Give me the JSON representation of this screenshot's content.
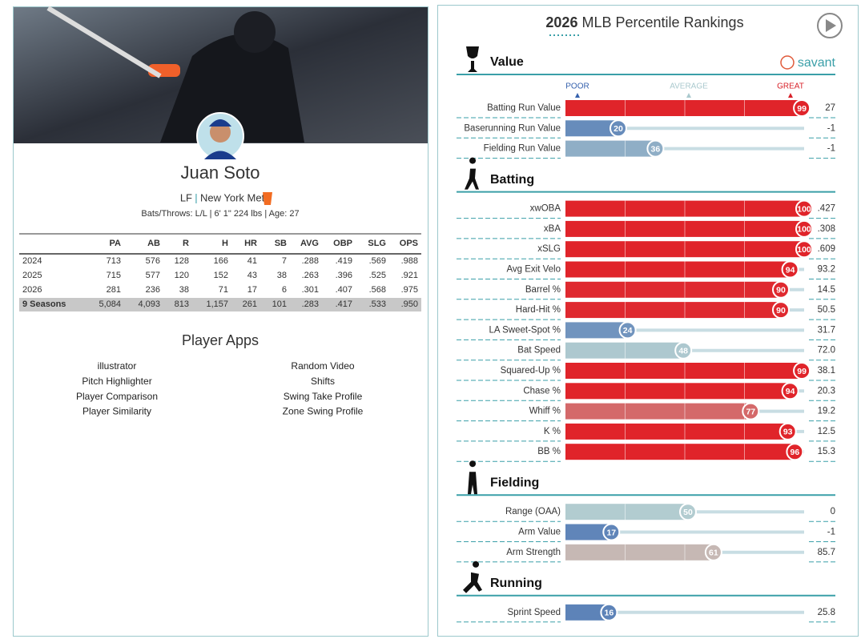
{
  "player": {
    "name": "Juan Soto",
    "position": "LF",
    "team": "New York Mets",
    "bio": "Bats/Throws: L/L | 6' 1\" 224 lbs | Age: 27"
  },
  "stats": {
    "columns": [
      "PA",
      "AB",
      "R",
      "H",
      "HR",
      "SB",
      "AVG",
      "OBP",
      "SLG",
      "OPS"
    ],
    "rows": [
      {
        "season": "2024",
        "values": [
          "713",
          "576",
          "128",
          "166",
          "41",
          "7",
          ".288",
          ".419",
          ".569",
          ".988"
        ]
      },
      {
        "season": "2025",
        "values": [
          "715",
          "577",
          "120",
          "152",
          "43",
          "38",
          ".263",
          ".396",
          ".525",
          ".921"
        ]
      },
      {
        "season": "2026",
        "values": [
          "281",
          "236",
          "38",
          "71",
          "17",
          "6",
          ".301",
          ".407",
          ".568",
          ".975"
        ]
      },
      {
        "season": "9 Seasons",
        "values": [
          "5,084",
          "4,093",
          "813",
          "1,157",
          "261",
          "101",
          ".283",
          ".417",
          ".533",
          ".950"
        ]
      }
    ]
  },
  "apps": {
    "title": "Player Apps",
    "left": [
      "illustrator",
      "Pitch Highlighter",
      "Player Comparison",
      "Player Similarity"
    ],
    "right": [
      "Random Video",
      "Shifts",
      "Swing Take Profile",
      "Zone Swing Profile"
    ]
  },
  "rankings": {
    "year": "2026",
    "title": "MLB Percentile Rankings",
    "brand": "savant",
    "scale": {
      "poor": "POOR",
      "average": "AVERAGE",
      "great": "GREAT"
    },
    "sections": [
      {
        "name": "Value",
        "metrics": [
          {
            "label": "Batting Run Value",
            "percentile": 99,
            "value": "27"
          },
          {
            "label": "Baserunning Run Value",
            "percentile": 20,
            "value": "-1"
          },
          {
            "label": "Fielding Run Value",
            "percentile": 36,
            "value": "-1"
          }
        ]
      },
      {
        "name": "Batting",
        "metrics": [
          {
            "label": "xwOBA",
            "percentile": 100,
            "value": ".427"
          },
          {
            "label": "xBA",
            "percentile": 100,
            "value": ".308"
          },
          {
            "label": "xSLG",
            "percentile": 100,
            "value": ".609"
          },
          {
            "label": "Avg Exit Velo",
            "percentile": 94,
            "value": "93.2"
          },
          {
            "label": "Barrel %",
            "percentile": 90,
            "value": "14.5"
          },
          {
            "label": "Hard-Hit %",
            "percentile": 90,
            "value": "50.5"
          },
          {
            "label": "LA Sweet-Spot %",
            "percentile": 24,
            "value": "31.7"
          },
          {
            "label": "Bat Speed",
            "percentile": 48,
            "value": "72.0"
          },
          {
            "label": "Squared-Up %",
            "percentile": 99,
            "value": "38.1"
          },
          {
            "label": "Chase %",
            "percentile": 94,
            "value": "20.3"
          },
          {
            "label": "Whiff %",
            "percentile": 77,
            "value": "19.2"
          },
          {
            "label": "K %",
            "percentile": 93,
            "value": "12.5"
          },
          {
            "label": "BB %",
            "percentile": 96,
            "value": "15.3"
          }
        ]
      },
      {
        "name": "Fielding",
        "metrics": [
          {
            "label": "Range (OAA)",
            "percentile": 50,
            "value": "0"
          },
          {
            "label": "Arm Value",
            "percentile": 17,
            "value": "-1"
          },
          {
            "label": "Arm Strength",
            "percentile": 61,
            "value": "85.7"
          }
        ]
      },
      {
        "name": "Running",
        "metrics": [
          {
            "label": "Sprint Speed",
            "percentile": 16,
            "value": "25.8"
          }
        ]
      }
    ]
  }
}
